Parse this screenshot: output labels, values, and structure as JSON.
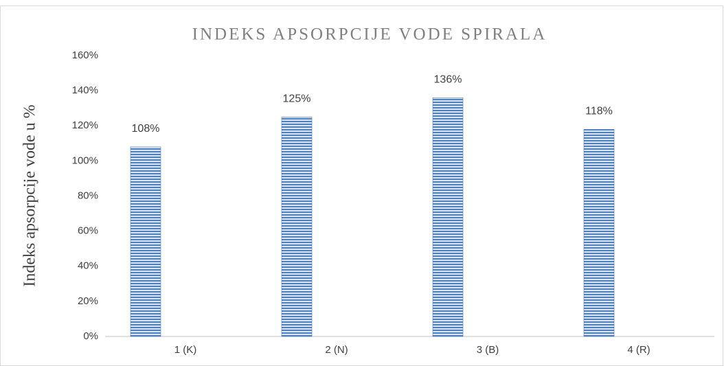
{
  "chart_data": {
    "type": "bar",
    "title": "INDEKS APSORPCIJE VODE SPIRALA",
    "y_label": "Indeks apsorpcije vode u %",
    "categories": [
      "1 (K)",
      "2 (N)",
      "3 (B)",
      "4 (R)"
    ],
    "values": [
      108,
      125,
      136,
      118
    ],
    "value_labels": [
      "108%",
      "125%",
      "136%",
      "118%"
    ],
    "color": "#4f81bd",
    "ylim": [
      0,
      160
    ],
    "yticks": [
      {
        "value": 0,
        "label": "0%"
      },
      {
        "value": 20,
        "label": "20%"
      },
      {
        "value": 40,
        "label": "40%"
      },
      {
        "value": 60,
        "label": "60%"
      },
      {
        "value": 80,
        "label": "80%"
      },
      {
        "value": 100,
        "label": "100%"
      },
      {
        "value": 120,
        "label": "120%"
      },
      {
        "value": 140,
        "label": "140%"
      },
      {
        "value": 160,
        "label": "160%"
      }
    ],
    "grid": false
  }
}
